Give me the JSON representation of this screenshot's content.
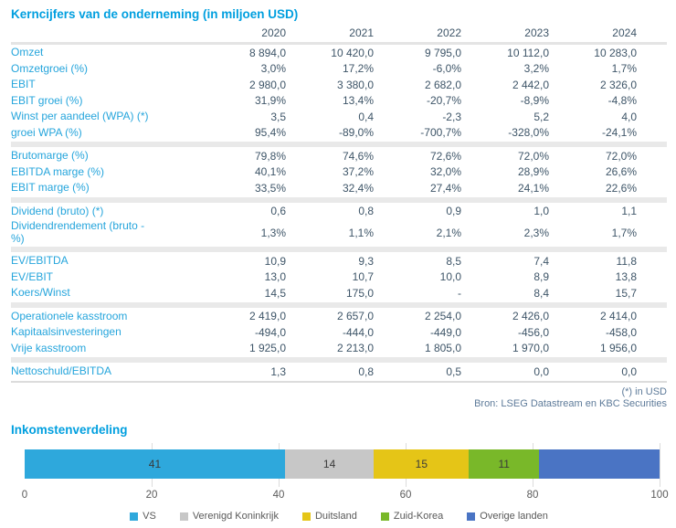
{
  "table": {
    "title": "Kerncijfers van de onderneming (in miljoen USD)",
    "years": [
      "2020",
      "2021",
      "2022",
      "2023",
      "2024"
    ],
    "sections": [
      {
        "rows": [
          {
            "label": "Omzet",
            "values": [
              "8 894,0",
              "10 420,0",
              "9 795,0",
              "10 112,0",
              "10 283,0"
            ]
          },
          {
            "label": "Omzetgroei (%)",
            "values": [
              "3,0%",
              "17,2%",
              "-6,0%",
              "3,2%",
              "1,7%"
            ]
          },
          {
            "label": "EBIT",
            "values": [
              "2 980,0",
              "3 380,0",
              "2 682,0",
              "2 442,0",
              "2 326,0"
            ]
          },
          {
            "label": "EBIT groei (%)",
            "values": [
              "31,9%",
              "13,4%",
              "-20,7%",
              "-8,9%",
              "-4,8%"
            ]
          },
          {
            "label": "Winst per aandeel (WPA) (*)",
            "values": [
              "3,5",
              "0,4",
              "-2,3",
              "5,2",
              "4,0"
            ]
          },
          {
            "label": "groei WPA (%)",
            "values": [
              "95,4%",
              "-89,0%",
              "-700,7%",
              "-328,0%",
              "-24,1%"
            ]
          }
        ]
      },
      {
        "rows": [
          {
            "label": "Brutomarge (%)",
            "values": [
              "79,8%",
              "74,6%",
              "72,6%",
              "72,0%",
              "72,0%"
            ]
          },
          {
            "label": "EBITDA marge (%)",
            "values": [
              "40,1%",
              "37,2%",
              "32,0%",
              "28,9%",
              "26,6%"
            ]
          },
          {
            "label": "EBIT marge (%)",
            "values": [
              "33,5%",
              "32,4%",
              "27,4%",
              "24,1%",
              "22,6%"
            ]
          }
        ]
      },
      {
        "rows": [
          {
            "label": "Dividend (bruto) (*)",
            "values": [
              "0,6",
              "0,8",
              "0,9",
              "1,0",
              "1,1"
            ]
          },
          {
            "label": "Dividendrendement (bruto -\n%)",
            "tall": true,
            "values": [
              "1,3%",
              "1,1%",
              "2,1%",
              "2,3%",
              "1,7%"
            ]
          }
        ]
      },
      {
        "rows": [
          {
            "label": "EV/EBITDA",
            "values": [
              "10,9",
              "9,3",
              "8,5",
              "7,4",
              "11,8"
            ]
          },
          {
            "label": "EV/EBIT",
            "values": [
              "13,0",
              "10,7",
              "10,0",
              "8,9",
              "13,8"
            ]
          },
          {
            "label": "Koers/Winst",
            "values": [
              "14,5",
              "175,0",
              "-",
              "8,4",
              "15,7"
            ]
          }
        ]
      },
      {
        "rows": [
          {
            "label": "Operationele kasstroom",
            "values": [
              "2 419,0",
              "2 657,0",
              "2 254,0",
              "2 426,0",
              "2 414,0"
            ]
          },
          {
            "label": "Kapitaalsinvesteringen",
            "values": [
              "-494,0",
              "-444,0",
              "-449,0",
              "-456,0",
              "-458,0"
            ]
          },
          {
            "label": "Vrije kasstroom",
            "values": [
              "1 925,0",
              "2 213,0",
              "1 805,0",
              "1 970,0",
              "1 956,0"
            ]
          }
        ]
      },
      {
        "rows": [
          {
            "label": "Nettoschuld/EBITDA",
            "values": [
              "1,3",
              "0,8",
              "0,5",
              "0,0",
              "0,0"
            ]
          }
        ]
      }
    ],
    "footnote": "(*) in USD",
    "source": "Bron: LSEG Datastream en KBC Securities"
  },
  "chart_data": {
    "type": "bar",
    "orientation": "horizontal-stacked",
    "title": "Inkomstenverdeling",
    "series": [
      {
        "name": "VS",
        "value": 41,
        "color": "#2EA8DC",
        "show_label": true
      },
      {
        "name": "Verenigd Koninkrijk",
        "value": 14,
        "color": "#C7C7C7",
        "show_label": true
      },
      {
        "name": "Duitsland",
        "value": 15,
        "color": "#E5C517",
        "show_label": true
      },
      {
        "name": "Zuid-Korea",
        "value": 11,
        "color": "#79B829",
        "show_label": true
      },
      {
        "name": "Overige landen",
        "value": 19,
        "color": "#4A74C4",
        "show_label": false
      }
    ],
    "xlim": [
      0,
      100
    ],
    "xticks": [
      0,
      20,
      40,
      60,
      80,
      100
    ],
    "grid": true,
    "legend_position": "bottom"
  },
  "colors": {
    "accent_blue": "#009FDF",
    "label_blue": "#25A5DC",
    "value_text": "#3E5568",
    "footer_text": "#5D7A99"
  }
}
